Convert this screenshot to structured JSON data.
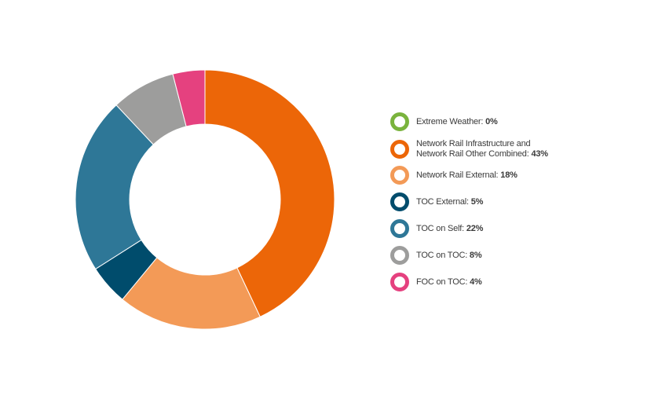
{
  "chart_data": {
    "type": "pie",
    "donut": true,
    "title": "",
    "legend_position": "right",
    "slices": [
      {
        "label": "Extreme Weather:",
        "value": 0,
        "value_label": "0%",
        "color": "#7AB33D"
      },
      {
        "label": "Network Rail Infrastructure and\nNetwork Rail Other Combined:",
        "value": 43,
        "value_label": "43%",
        "color": "#EC6608"
      },
      {
        "label": "Network Rail External:",
        "value": 18,
        "value_label": "18%",
        "color": "#F39A57"
      },
      {
        "label": "TOC External:",
        "value": 5,
        "value_label": "5%",
        "color": "#004C6C"
      },
      {
        "label": "TOC on Self:",
        "value": 22,
        "value_label": "22%",
        "color": "#2E7797"
      },
      {
        "label": "TOC on TOC:",
        "value": 8,
        "value_label": "8%",
        "color": "#9D9D9C"
      },
      {
        "label": "FOC on TOC:",
        "value": 4,
        "value_label": "4%",
        "color": "#E5417F"
      }
    ]
  }
}
